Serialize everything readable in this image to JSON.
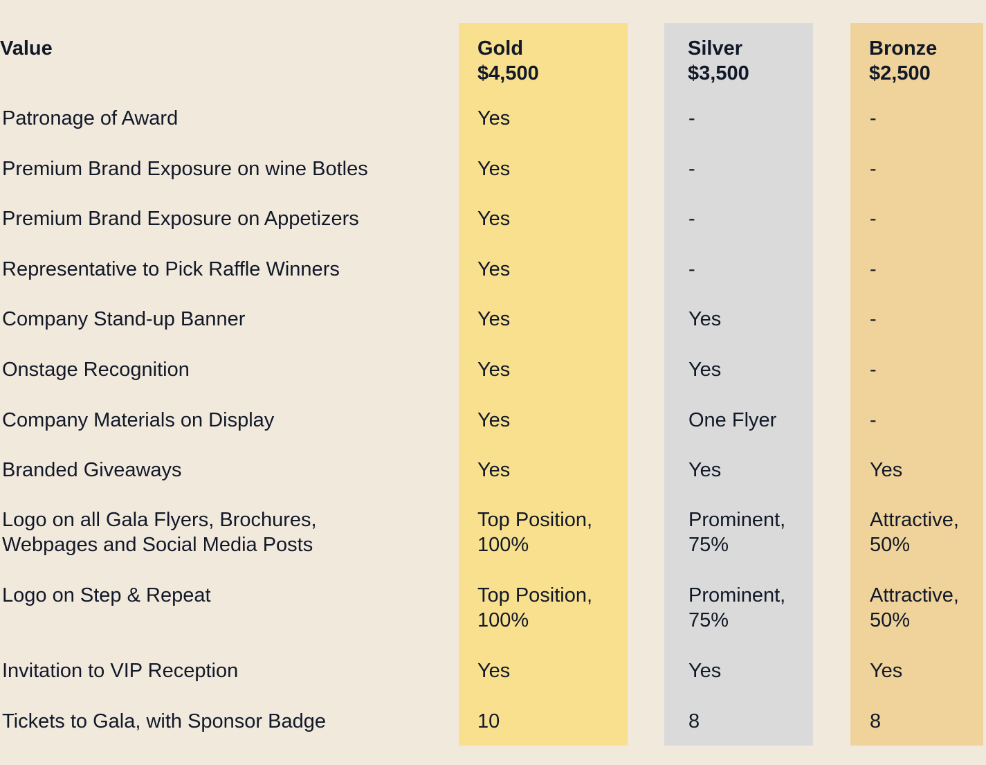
{
  "colors": {
    "background": "#f2e9dd",
    "gold": "#f8e08e",
    "silver": "#dadada",
    "bronze": "#efd39b",
    "text": "#111827"
  },
  "header": {
    "value_label": "Value",
    "gold_name": "Gold",
    "gold_price": "$4,500",
    "silver_name": "Silver",
    "silver_price": "$3,500",
    "bronze_name": "Bronze",
    "bronze_price": "$2,500"
  },
  "rows": [
    {
      "feature": "Patronage of Award",
      "gold": "Yes",
      "silver": "-",
      "bronze": "-"
    },
    {
      "feature": "Premium Brand Exposure on wine Botles",
      "gold": "Yes",
      "silver": "-",
      "bronze": "-"
    },
    {
      "feature": "Premium Brand Exposure on Appetizers",
      "gold": "Yes",
      "silver": "-",
      "bronze": "-"
    },
    {
      "feature": "Representative to Pick Raffle Winners",
      "gold": "Yes",
      "silver": "-",
      "bronze": "-"
    },
    {
      "feature": "Company Stand-up Banner",
      "gold": "Yes",
      "silver": "Yes",
      "bronze": "-"
    },
    {
      "feature": "Onstage Recognition",
      "gold": "Yes",
      "silver": "Yes",
      "bronze": "-"
    },
    {
      "feature": "Company Materials on Display",
      "gold": "Yes",
      "silver": "One Flyer",
      "bronze": "-"
    },
    {
      "feature": "Branded Giveaways",
      "gold": "Yes",
      "silver": "Yes",
      "bronze": "Yes"
    },
    {
      "feature_line1": "Logo on all Gala Flyers, Brochures,",
      "feature_line2": "Webpages and Social Media Posts",
      "gold_line1": "Top Position,",
      "gold_line2": "100%",
      "silver_line1": "Prominent,",
      "silver_line2": "75%",
      "bronze_line1": "Attractive,",
      "bronze_line2": "50%"
    },
    {
      "feature": "Logo on Step & Repeat",
      "gold_line1": "Top Position,",
      "gold_line2": "100%",
      "silver_line1": "Prominent,",
      "silver_line2": "75%",
      "bronze_line1": "Attractive,",
      "bronze_line2": "50%"
    },
    {
      "feature": "Invitation to VIP Reception",
      "gold": "Yes",
      "silver": "Yes",
      "bronze": "Yes"
    },
    {
      "feature": "Tickets to Gala, with Sponsor Badge",
      "gold": "10",
      "silver": "8",
      "bronze": "8"
    }
  ]
}
